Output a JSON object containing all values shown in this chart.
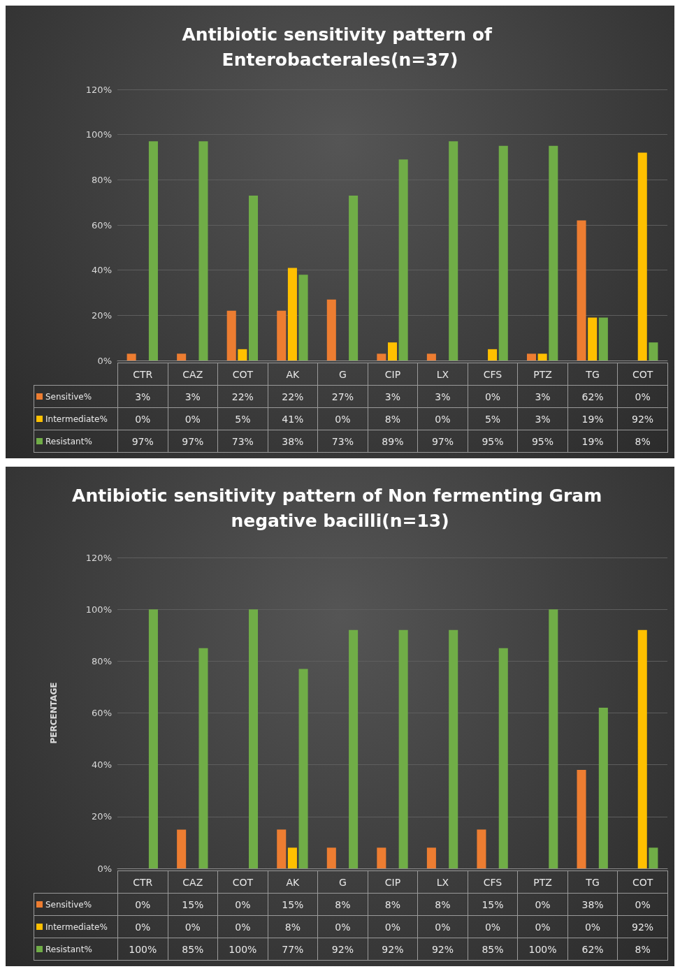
{
  "chart_data": [
    {
      "type": "bar",
      "title": "Antibiotic sensitivity pattern of Enterobacterales(n=37)",
      "categories": [
        "CTR",
        "CAZ",
        "COT",
        "AK",
        "G",
        "CIP",
        "LX",
        "CFS",
        "PTZ",
        "TG",
        "COT"
      ],
      "ylim": [
        0,
        120
      ],
      "yticks": [
        {
          "value": 0,
          "label": "0%"
        },
        {
          "value": 20,
          "label": "20%"
        },
        {
          "value": 40,
          "label": "40%"
        },
        {
          "value": 60,
          "label": "60%"
        },
        {
          "value": 80,
          "label": "80%"
        },
        {
          "value": 100,
          "label": "100%"
        },
        {
          "value": 120,
          "label": "120%"
        }
      ],
      "grid": "y",
      "legend": "bottom left",
      "series": [
        {
          "name": "Sensitive%",
          "color": "#ed7d31",
          "values": [
            3,
            3,
            22,
            22,
            27,
            3,
            3,
            0,
            3,
            62,
            0
          ],
          "value_labels": [
            "3%",
            "3%",
            "22%",
            "22%",
            "27%",
            "3%",
            "3%",
            "0%",
            "3%",
            "62%",
            "0%"
          ]
        },
        {
          "name": "Intermediate%",
          "color": "#ffc000",
          "values": [
            0,
            0,
            5,
            41,
            0,
            8,
            0,
            5,
            3,
            19,
            92
          ],
          "value_labels": [
            "0%",
            "0%",
            "5%",
            "41%",
            "0%",
            "8%",
            "0%",
            "5%",
            "3%",
            "19%",
            "92%"
          ]
        },
        {
          "name": "Resistant%",
          "color": "#70ad47",
          "values": [
            97,
            97,
            73,
            38,
            73,
            89,
            97,
            95,
            95,
            19,
            8
          ],
          "value_labels": [
            "97%",
            "97%",
            "73%",
            "38%",
            "73%",
            "89%",
            "97%",
            "95%",
            "95%",
            "19%",
            "8%"
          ]
        }
      ]
    },
    {
      "type": "bar",
      "title": "Antibiotic sensitivity pattern of Non fermenting Gram negative bacilli(n=13)",
      "ylabel": "PERCENTAGE",
      "categories": [
        "CTR",
        "CAZ",
        "COT",
        "AK",
        "G",
        "CIP",
        "LX",
        "CFS",
        "PTZ",
        "TG",
        "COT"
      ],
      "ylim": [
        0,
        120
      ],
      "yticks": [
        {
          "value": 0,
          "label": "0%"
        },
        {
          "value": 20,
          "label": "20%"
        },
        {
          "value": 40,
          "label": "40%"
        },
        {
          "value": 60,
          "label": "60%"
        },
        {
          "value": 80,
          "label": "80%"
        },
        {
          "value": 100,
          "label": "100%"
        },
        {
          "value": 120,
          "label": "120%"
        }
      ],
      "grid": "y",
      "legend": "bottom left",
      "series": [
        {
          "name": "Sensitive%",
          "color": "#ed7d31",
          "values": [
            0,
            15,
            0,
            15,
            8,
            8,
            8,
            15,
            0,
            38,
            0
          ],
          "value_labels": [
            "0%",
            "15%",
            "0%",
            "15%",
            "8%",
            "8%",
            "8%",
            "15%",
            "0%",
            "38%",
            "0%"
          ]
        },
        {
          "name": "Intermediate%",
          "color": "#ffc000",
          "values": [
            0,
            0,
            0,
            8,
            0,
            0,
            0,
            0,
            0,
            0,
            92
          ],
          "value_labels": [
            "0%",
            "0%",
            "0%",
            "8%",
            "0%",
            "0%",
            "0%",
            "0%",
            "0%",
            "0%",
            "92%"
          ]
        },
        {
          "name": "Resistant%",
          "color": "#70ad47",
          "values": [
            100,
            85,
            100,
            77,
            92,
            92,
            92,
            85,
            100,
            62,
            8
          ],
          "value_labels": [
            "100%",
            "85%",
            "100%",
            "77%",
            "92%",
            "92%",
            "92%",
            "85%",
            "100%",
            "62%",
            "8%"
          ]
        }
      ]
    }
  ]
}
